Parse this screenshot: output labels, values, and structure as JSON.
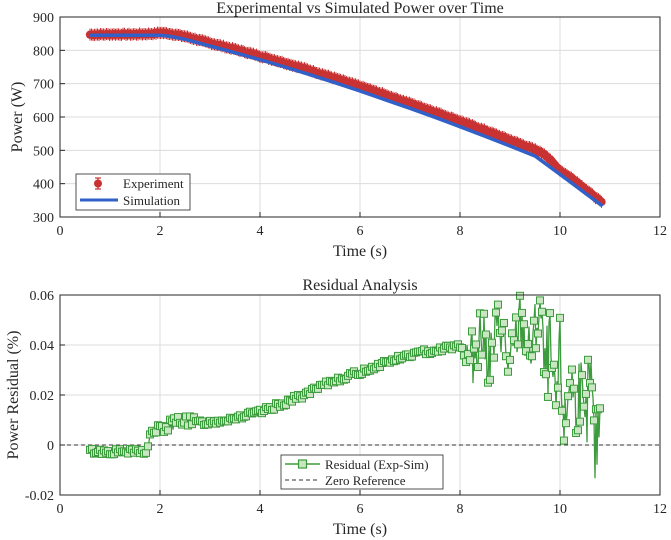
{
  "chart_data": [
    {
      "type": "scatter",
      "title": "Experimental vs Simulated Power over Time",
      "xlabel": "Time (s)",
      "ylabel": "Power (W)",
      "xlim": [
        0,
        12
      ],
      "ylim": [
        300,
        900
      ],
      "xticks": [
        "0",
        "2",
        "4",
        "6",
        "8",
        "10",
        "12"
      ],
      "yticks": [
        "300",
        "400",
        "500",
        "600",
        "700",
        "800",
        "900"
      ],
      "grid": true,
      "legend_position": "bottom-left",
      "series": [
        {
          "name": "Experiment",
          "style": "error-bar markers",
          "color": "#c83232",
          "x": [
            0.6,
            1.0,
            1.5,
            1.9,
            2.0,
            2.2,
            2.5,
            3.0,
            3.5,
            4.0,
            4.5,
            5.0,
            5.5,
            6.0,
            6.5,
            7.0,
            7.5,
            8.0,
            8.5,
            9.0,
            9.5,
            9.7,
            10.0,
            10.3,
            10.5,
            10.7,
            10.85
          ],
          "y": [
            847,
            848,
            848,
            850,
            853,
            850,
            842,
            822,
            803,
            783,
            762,
            740,
            716,
            692,
            667,
            641,
            615,
            588,
            560,
            531,
            502,
            488,
            440,
            410,
            385,
            360,
            342
          ]
        },
        {
          "name": "Simulation",
          "style": "line",
          "color": "#3060c8",
          "x": [
            0.6,
            1.0,
            1.5,
            1.9,
            2.0,
            2.2,
            2.5,
            3.0,
            3.5,
            4.0,
            4.5,
            5.0,
            5.5,
            6.0,
            6.5,
            7.0,
            7.5,
            8.0,
            8.5,
            9.0,
            9.5,
            10.0,
            10.5,
            10.85
          ],
          "y": [
            845,
            845,
            845,
            845,
            845,
            842,
            833,
            813,
            793,
            772,
            750,
            727,
            703,
            678,
            652,
            626,
            599,
            571,
            542,
            513,
            483,
            428,
            372,
            333
          ]
        }
      ]
    },
    {
      "type": "scatter",
      "title": "Residual Analysis",
      "xlabel": "Time (s)",
      "ylabel": "Power Residual (%)",
      "xlim": [
        0,
        12
      ],
      "ylim": [
        -0.02,
        0.06
      ],
      "xticks": [
        "0",
        "2",
        "4",
        "6",
        "8",
        "10",
        "12"
      ],
      "yticks": [
        "-0.02",
        "0",
        "0.02",
        "0.04",
        "0.06"
      ],
      "grid": true,
      "legend_position": "bottom-center",
      "series": [
        {
          "name": "Residual (Exp-Sim)",
          "style": "line with square markers",
          "color": "#3c9b3c",
          "x": [
            0.6,
            1.0,
            1.5,
            1.75,
            1.8,
            1.9,
            2.0,
            2.2,
            2.5,
            2.6,
            3.0,
            3.5,
            4.0,
            4.5,
            5.0,
            5.5,
            6.0,
            6.5,
            7.0,
            7.5,
            8.0,
            8.2,
            8.4,
            8.6,
            8.8,
            9.0,
            9.2,
            9.4,
            9.6,
            9.7,
            9.8,
            9.9,
            10.0,
            10.1,
            10.2,
            10.3,
            10.4,
            10.5,
            10.6,
            10.7,
            10.8
          ],
          "y": [
            -0.0025,
            -0.0027,
            -0.0027,
            -0.0025,
            0.004,
            0.006,
            0.006,
            0.008,
            0.011,
            0.009,
            0.009,
            0.011,
            0.013,
            0.017,
            0.021,
            0.026,
            0.029,
            0.033,
            0.036,
            0.038,
            0.04,
            0.032,
            0.045,
            0.034,
            0.05,
            0.03,
            0.05,
            0.035,
            0.055,
            0.028,
            0.038,
            0.012,
            0.035,
            0.005,
            0.03,
            0.015,
            0.025,
            0.001,
            0.03,
            -0.005,
            0.015
          ]
        },
        {
          "name": "Zero Reference",
          "style": "dashed line",
          "color": "#333333",
          "x": [
            0,
            12
          ],
          "y": [
            0,
            0
          ]
        }
      ]
    }
  ]
}
